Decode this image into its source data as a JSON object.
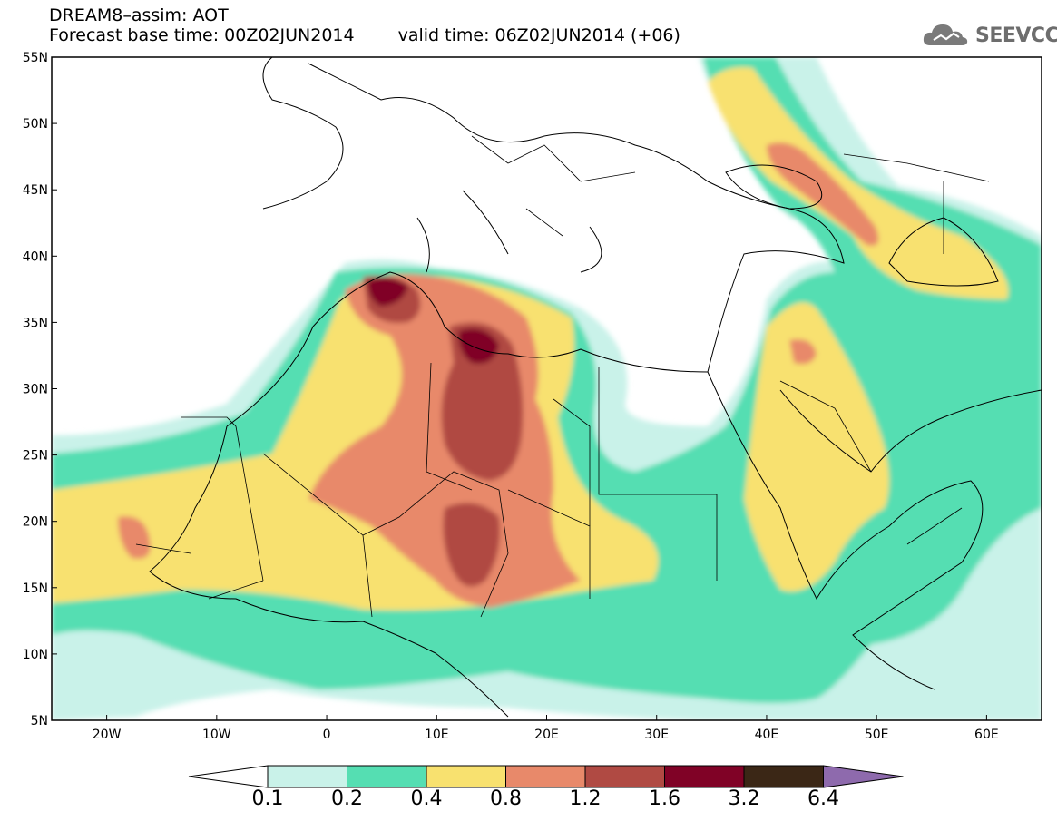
{
  "header": {
    "title": "DREAM8–assim: AOT",
    "base_time": "Forecast base time: 00Z02JUN2014",
    "valid_time": "valid time: 06Z02JUN2014 (+06)"
  },
  "logo": {
    "text": "SEEVCCC",
    "icon": "cloud-icon"
  },
  "map": {
    "lat_range": [
      5,
      55
    ],
    "lon_range": [
      -25,
      65
    ],
    "lat_ticks": [
      "55N",
      "50N",
      "45N",
      "40N",
      "35N",
      "30N",
      "25N",
      "20N",
      "15N",
      "10N",
      "5N"
    ],
    "lon_ticks": [
      "20W",
      "10W",
      "0",
      "10E",
      "20E",
      "30E",
      "40E",
      "50E",
      "60E"
    ]
  },
  "legend": {
    "colors": [
      "#ffffff",
      "#c9f2e9",
      "#55deb2",
      "#f8e16f",
      "#e8896a",
      "#b04a43",
      "#800226",
      "#3b2716",
      "#8e6aad"
    ],
    "labels": [
      "0.1",
      "0.2",
      "0.4",
      "0.8",
      "1.2",
      "1.6",
      "3.2",
      "6.4"
    ]
  }
}
